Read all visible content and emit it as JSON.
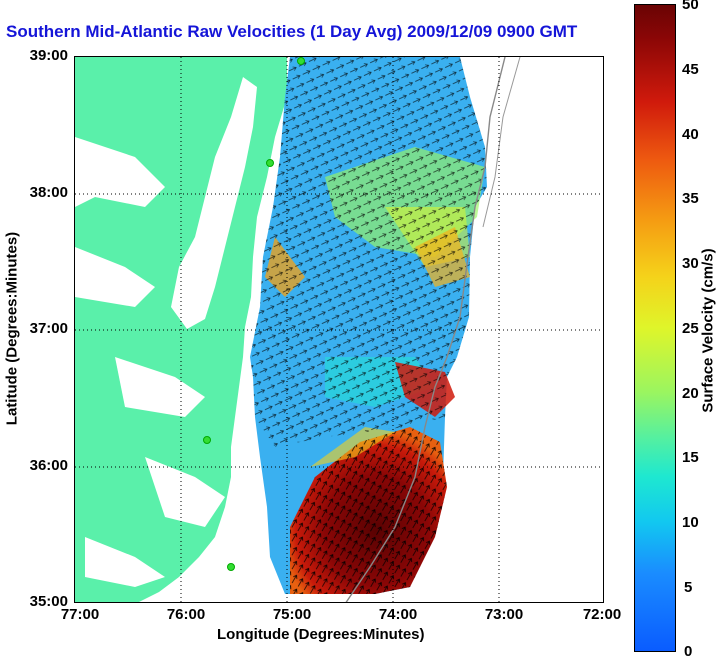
{
  "title": "Southern Mid-Atlantic Raw Velocities (1 Day Avg) 2009/12/09 0900 GMT",
  "xaxis": {
    "label": "Longitude (Degrees:Minutes)",
    "ticks": [
      "77:00",
      "76:00",
      "75:00",
      "74:00",
      "73:00",
      "72:00"
    ]
  },
  "yaxis": {
    "label": "Latitude (Degrees:Minutes)",
    "ticks": [
      "39:00",
      "38:00",
      "37:00",
      "36:00",
      "35:00"
    ]
  },
  "colorbar": {
    "label": "Surface Velocity (cm/s)",
    "ticks": [
      "50",
      "45",
      "40",
      "35",
      "30",
      "25",
      "20",
      "15",
      "10",
      "5",
      "0"
    ]
  },
  "colors": {
    "land": "#5af0aa",
    "title": "#1515d8"
  },
  "stations": [
    "site-1",
    "site-2",
    "site-3",
    "site-4"
  ]
}
